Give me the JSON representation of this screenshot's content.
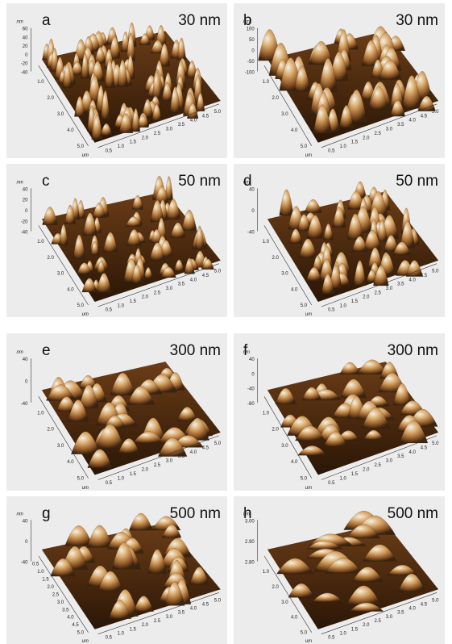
{
  "panels": [
    {
      "letter": "a",
      "thickness": "30 nm",
      "unit_z": "nm",
      "unit_xy": "um",
      "z_ticks": [
        "60",
        "40",
        "20",
        "0",
        "-20",
        "-40"
      ],
      "y_ticks": [
        "1.0",
        "2.0",
        "3.0",
        "4.0",
        "5.0"
      ],
      "x_ticks": [
        "0.5",
        "1.0",
        "1.5",
        "2.0",
        "2.5",
        "3.0",
        "3.5",
        "4.0",
        "4.5",
        "5.0"
      ]
    },
    {
      "letter": "b",
      "thickness": "30 nm",
      "unit_z": "nm",
      "unit_xy": "um",
      "z_ticks": [
        "100",
        "50",
        "0",
        "-50",
        "-100"
      ],
      "y_ticks": [
        "1.0",
        "2.0",
        "3.0",
        "4.0",
        "5.0"
      ],
      "x_ticks": [
        "0.5",
        "1.0",
        "1.5",
        "2.0",
        "2.5",
        "3.0",
        "3.5",
        "4.0",
        "4.5",
        "5.0"
      ]
    },
    {
      "letter": "c",
      "thickness": "50 nm",
      "unit_z": "nm",
      "unit_xy": "um",
      "z_ticks": [
        "40",
        "20",
        "0",
        "-20",
        "-40"
      ],
      "y_ticks": [
        "1.0",
        "2.0",
        "3.0",
        "4.0",
        "5.0"
      ],
      "x_ticks": [
        "0.5",
        "1.0",
        "1.5",
        "2.0",
        "2.5",
        "3.0",
        "3.5",
        "4.0",
        "4.5",
        "5.0"
      ]
    },
    {
      "letter": "d",
      "thickness": "50 nm",
      "unit_z": "nm",
      "unit_xy": "um",
      "z_ticks": [
        "40",
        "0",
        "-40"
      ],
      "y_ticks": [
        "1.0",
        "2.0",
        "3.0",
        "4.0",
        "5.0"
      ],
      "x_ticks": [
        "0.5",
        "1.0",
        "1.5",
        "2.0",
        "2.5",
        "3.0",
        "3.5",
        "4.0",
        "4.5",
        "5.0"
      ]
    },
    {
      "letter": "e",
      "thickness": "300 nm",
      "unit_z": "nm",
      "unit_xy": "um",
      "z_ticks": [
        "40",
        "0",
        "-40"
      ],
      "y_ticks": [
        "1.0",
        "2.0",
        "3.0",
        "4.0",
        "5.0"
      ],
      "x_ticks": [
        "0.5",
        "1.0",
        "1.5",
        "2.0",
        "2.5",
        "3.0",
        "3.5",
        "4.0",
        "4.5",
        "5.0"
      ]
    },
    {
      "letter": "f",
      "thickness": "300 nm",
      "unit_z": "nm",
      "unit_xy": "um",
      "z_ticks": [
        "40",
        "0",
        "-40",
        "-80"
      ],
      "y_ticks": [
        "1.0",
        "2.0",
        "3.0",
        "4.0",
        "5.0"
      ],
      "x_ticks": [
        "0.5",
        "1.0",
        "1.5",
        "2.0",
        "2.5",
        "3.0",
        "3.5",
        "4.0",
        "4.5",
        "5.0"
      ]
    },
    {
      "letter": "g",
      "thickness": "500 nm",
      "unit_z": "nm",
      "unit_xy": "um",
      "z_ticks": [
        "40",
        "0",
        "-40"
      ],
      "y_ticks": [
        "0.5",
        "1.0",
        "1.5",
        "2.0",
        "2.5",
        "3.0",
        "3.5",
        "4.0",
        "4.5",
        "5.0"
      ],
      "x_ticks": [
        "0.5",
        "1.0",
        "1.5",
        "2.0",
        "2.5",
        "3.0",
        "3.5",
        "4.0",
        "4.5",
        "5.0"
      ]
    },
    {
      "letter": "h",
      "thickness": "500 nm",
      "unit_z": "um",
      "unit_xy": "um",
      "z_ticks": [
        "3.00",
        "2.90",
        "2.80"
      ],
      "y_ticks": [
        "1.0",
        "2.0",
        "3.0",
        "4.0",
        "5.0"
      ],
      "x_ticks": [
        "0.5",
        "1.0",
        "1.5",
        "2.0",
        "2.5",
        "3.0",
        "3.5",
        "4.0",
        "4.5",
        "5.0"
      ]
    }
  ],
  "colors": {
    "panel_bg": "#ececec",
    "surface_dark": "#3a2410",
    "surface_mid": "#8a5424",
    "surface_light": "#d9a86a",
    "highlight": "#f3f0e4"
  }
}
